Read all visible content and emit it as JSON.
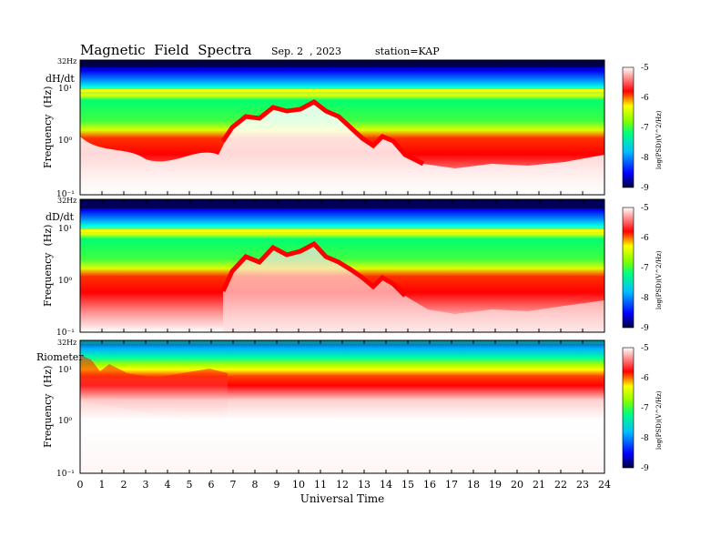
{
  "header": {
    "title": "Magnetic  Field  Spectra",
    "date": "Sep. 2  , 2023",
    "station": "station=KAP"
  },
  "chart_data": [
    {
      "type": "heatmap",
      "panel_label": "dH/dt",
      "ylabel": "Frequency  (Hz)",
      "top_label": "32Hz",
      "yticks": [
        "10⁻¹",
        "10⁰",
        "10¹"
      ],
      "colorbar": {
        "label": "log(PSD)(V^2/Hz)",
        "ticks": [
          "-5",
          "-6",
          "-7",
          "-8",
          "-9"
        ],
        "range": [
          -9,
          -5
        ]
      },
      "ridge_peak_hours": [
        7.5,
        9.0,
        11.0,
        14.0
      ],
      "ridge_peak_freq_hz": [
        2.0,
        3.5,
        3.5,
        1.4
      ]
    },
    {
      "type": "heatmap",
      "panel_label": "dD/dt",
      "ylabel": "Frequency  (Hz)",
      "top_label": "32Hz",
      "yticks": [
        "10⁻¹",
        "10⁰",
        "10¹"
      ],
      "colorbar": {
        "label": "log(PSD)(V^2/Hz)",
        "ticks": [
          "-5",
          "-6",
          "-7",
          "-8",
          "-9"
        ],
        "range": [
          -9,
          -5
        ]
      },
      "ridge_peak_hours": [
        7.5,
        9.0,
        11.0,
        14.0
      ],
      "ridge_peak_freq_hz": [
        2.0,
        3.5,
        3.5,
        1.4
      ]
    },
    {
      "type": "heatmap",
      "panel_label": "Riometer",
      "ylabel": "Frequency  (Hz)",
      "top_label": "32Hz",
      "yticks": [
        "10⁻¹",
        "10⁰",
        "10¹"
      ],
      "colorbar": {
        "label": "log(PSD)(V^2/Hz)",
        "ticks": [
          "-5",
          "-6",
          "-7",
          "-8",
          "-9"
        ],
        "range": [
          -9,
          -5
        ]
      }
    }
  ],
  "xaxis": {
    "label": "Universal Time",
    "ticks": [
      "0",
      "1",
      "2",
      "3",
      "4",
      "5",
      "6",
      "7",
      "8",
      "9",
      "10",
      "11",
      "12",
      "13",
      "14",
      "15",
      "16",
      "17",
      "18",
      "19",
      "20",
      "21",
      "22",
      "23",
      "24"
    ],
    "range": [
      0,
      24
    ]
  }
}
